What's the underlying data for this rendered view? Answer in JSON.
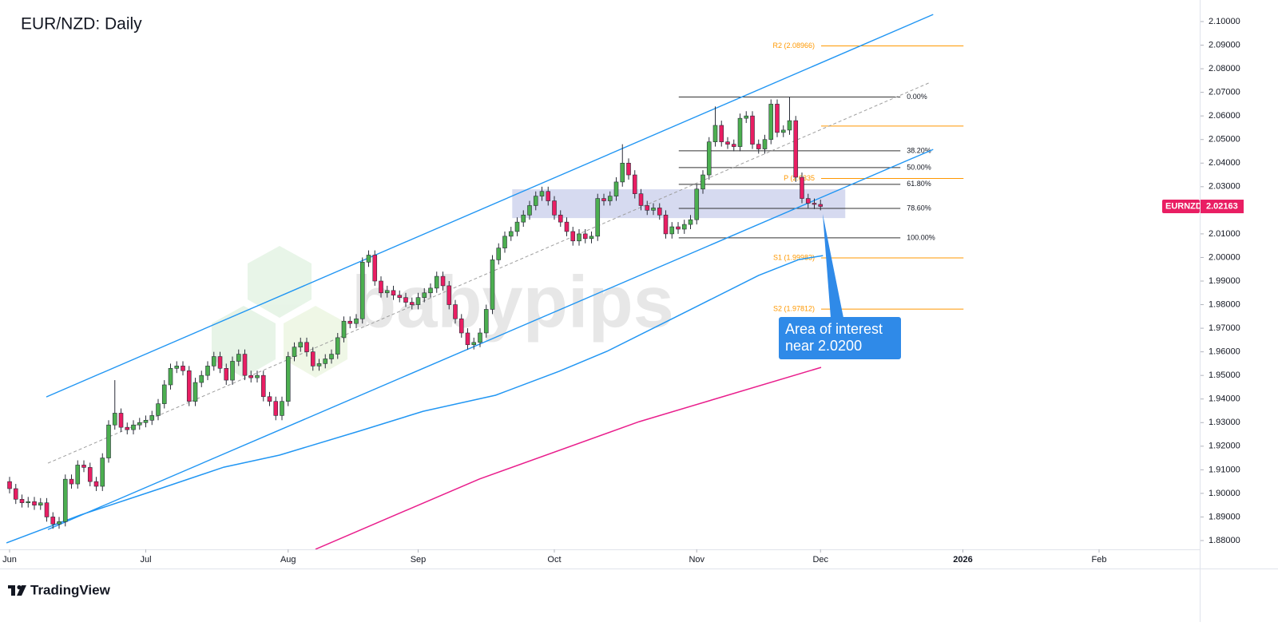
{
  "chart_data": {
    "type": "candlestick",
    "title": "EUR/NZD: Daily",
    "symbol_tag": "EURNZD",
    "last_price": 2.02163,
    "watermark": "babypips",
    "footer": "TradingView",
    "xlim": [
      -1.55,
      192.26
    ],
    "xticks": [
      {
        "value": 0,
        "label": "Jun"
      },
      {
        "value": 22,
        "label": "Jul"
      },
      {
        "value": 45,
        "label": "Aug"
      },
      {
        "value": 66,
        "label": "Sep"
      },
      {
        "value": 88,
        "label": "Oct"
      },
      {
        "value": 111,
        "label": "Nov"
      },
      {
        "value": 131,
        "label": "Dec"
      },
      {
        "value": 154,
        "label": "2026"
      },
      {
        "value": 176,
        "label": "Feb"
      }
    ],
    "ylim": [
      1.87627,
      2.10914
    ],
    "yticks": [
      {
        "value": 1.88,
        "label": "1.88000"
      },
      {
        "value": 1.89,
        "label": "1.89000"
      },
      {
        "value": 1.9,
        "label": "1.90000"
      },
      {
        "value": 1.91,
        "label": "1.91000"
      },
      {
        "value": 1.92,
        "label": "1.92000"
      },
      {
        "value": 1.93,
        "label": "1.93000"
      },
      {
        "value": 1.94,
        "label": "1.94000"
      },
      {
        "value": 1.95,
        "label": "1.95000"
      },
      {
        "value": 1.96,
        "label": "1.96000"
      },
      {
        "value": 1.97,
        "label": "1.97000"
      },
      {
        "value": 1.98,
        "label": "1.98000"
      },
      {
        "value": 1.99,
        "label": "1.99000"
      },
      {
        "value": 2.0,
        "label": "2.00000"
      },
      {
        "value": 2.01,
        "label": "2.01000"
      },
      {
        "value": 2.02,
        "label": "2.02000"
      },
      {
        "value": 2.03,
        "label": "2.03000"
      },
      {
        "value": 2.04,
        "label": "2.04000"
      },
      {
        "value": 2.05,
        "label": "2.05000"
      },
      {
        "value": 2.06,
        "label": "2.06000"
      },
      {
        "value": 2.07,
        "label": "2.07000"
      },
      {
        "value": 2.08,
        "label": "2.08000"
      },
      {
        "value": 2.09,
        "label": "2.09000"
      },
      {
        "value": 2.1,
        "label": "2.10000"
      }
    ],
    "series": [
      {
        "up_color": "#4caf50",
        "down_color": "#e91e63",
        "open": [
          1.905,
          1.902,
          1.8975,
          1.896,
          1.8965,
          1.895,
          1.896,
          1.89,
          1.887,
          1.888,
          1.906,
          1.904,
          1.912,
          1.911,
          1.905,
          1.903,
          1.915,
          1.929,
          1.934,
          1.928,
          1.927,
          1.929,
          1.93,
          1.931,
          1.933,
          1.938,
          1.946,
          1.953,
          1.954,
          1.952,
          1.939,
          1.947,
          1.95,
          1.954,
          1.958,
          1.953,
          1.948,
          1.956,
          1.959,
          1.95,
          1.949,
          1.95,
          1.941,
          1.939,
          1.933,
          1.939,
          1.958,
          1.962,
          1.964,
          1.96,
          1.954,
          1.955,
          1.957,
          1.959,
          1.966,
          1.973,
          1.972,
          1.974,
          1.998,
          2.001,
          1.99,
          1.985,
          1.986,
          1.984,
          1.983,
          1.981,
          1.98,
          1.983,
          1.985,
          1.987,
          1.992,
          1.988,
          1.98,
          1.974,
          1.968,
          1.963,
          1.964,
          1.968,
          1.978,
          1.999,
          2.004,
          2.009,
          2.011,
          2.015,
          2.018,
          2.022,
          2.026,
          2.028,
          2.024,
          2.018,
          2.015,
          2.011,
          2.007,
          2.01,
          2.008,
          2.009,
          2.025,
          2.024,
          2.026,
          2.032,
          2.04,
          2.035,
          2.027,
          2.022,
          2.02,
          2.021,
          2.018,
          2.01,
          2.013,
          2.012,
          2.014,
          2.016,
          2.029,
          2.035,
          2.049,
          2.056,
          2.049,
          2.048,
          2.047,
          2.059,
          2.06,
          2.048,
          2.046,
          2.05,
          2.065,
          2.053,
          2.054,
          2.058,
          2.034,
          2.025,
          2.023,
          2.0225
        ],
        "high": [
          1.907,
          1.904,
          1.8995,
          1.8985,
          1.8985,
          1.898,
          1.898,
          1.892,
          1.89,
          1.908,
          1.908,
          1.914,
          1.914,
          1.913,
          1.907,
          1.917,
          1.931,
          1.948,
          1.936,
          1.93,
          1.931,
          1.932,
          1.933,
          1.935,
          1.94,
          1.948,
          1.955,
          1.956,
          1.956,
          1.954,
          1.949,
          1.952,
          1.956,
          1.96,
          1.96,
          1.955,
          1.958,
          1.961,
          1.961,
          1.952,
          1.952,
          1.952,
          1.943,
          1.941,
          1.941,
          1.96,
          1.964,
          1.966,
          1.966,
          1.962,
          1.957,
          1.959,
          1.961,
          1.968,
          1.975,
          1.975,
          1.976,
          2.0,
          2.003,
          2.003,
          1.992,
          1.988,
          1.988,
          1.986,
          1.985,
          1.983,
          1.985,
          1.987,
          1.989,
          1.994,
          1.994,
          1.99,
          1.982,
          1.976,
          1.97,
          1.966,
          1.97,
          1.98,
          2.001,
          2.006,
          2.011,
          2.013,
          2.017,
          2.02,
          2.024,
          2.028,
          2.03,
          2.03,
          2.026,
          2.02,
          2.017,
          2.013,
          2.012,
          2.012,
          2.011,
          2.027,
          2.027,
          2.028,
          2.034,
          2.048,
          2.042,
          2.037,
          2.029,
          2.024,
          2.023,
          2.023,
          2.02,
          2.015,
          2.015,
          2.016,
          2.018,
          2.031,
          2.037,
          2.051,
          2.064,
          2.058,
          2.051,
          2.05,
          2.061,
          2.062,
          2.062,
          2.05,
          2.052,
          2.067,
          2.067,
          2.056,
          2.068,
          2.06,
          2.036,
          2.027,
          2.025,
          2.0245
        ],
        "low": [
          1.9,
          1.8955,
          1.894,
          1.894,
          1.893,
          1.893,
          1.888,
          1.885,
          1.885,
          1.886,
          1.902,
          1.902,
          1.909,
          1.903,
          1.901,
          1.901,
          1.913,
          1.927,
          1.926,
          1.925,
          1.925,
          1.927,
          1.928,
          1.929,
          1.931,
          1.936,
          1.944,
          1.951,
          1.95,
          1.937,
          1.937,
          1.945,
          1.948,
          1.952,
          1.951,
          1.946,
          1.946,
          1.954,
          1.948,
          1.947,
          1.947,
          1.939,
          1.937,
          1.931,
          1.931,
          1.937,
          1.956,
          1.96,
          1.958,
          1.952,
          1.952,
          1.953,
          1.955,
          1.957,
          1.964,
          1.97,
          1.97,
          1.972,
          1.996,
          1.988,
          1.983,
          1.983,
          1.982,
          1.981,
          1.979,
          1.978,
          1.978,
          1.981,
          1.983,
          1.985,
          1.986,
          1.978,
          1.972,
          1.966,
          1.961,
          1.961,
          1.962,
          1.966,
          1.976,
          1.997,
          2.002,
          2.007,
          2.009,
          2.013,
          2.016,
          2.02,
          2.024,
          2.022,
          2.016,
          2.013,
          2.009,
          2.005,
          2.005,
          2.006,
          2.006,
          2.007,
          2.022,
          2.022,
          2.024,
          2.03,
          2.033,
          2.025,
          2.02,
          2.018,
          2.018,
          2.016,
          2.008,
          2.008,
          2.01,
          2.01,
          2.012,
          2.014,
          2.027,
          2.033,
          2.047,
          2.047,
          2.046,
          2.045,
          2.045,
          2.057,
          2.046,
          2.044,
          2.044,
          2.048,
          2.051,
          2.051,
          2.052,
          2.032,
          2.023,
          2.021,
          2.0205,
          2.02
        ],
        "close": [
          1.902,
          1.8975,
          1.896,
          1.8965,
          1.895,
          1.896,
          1.89,
          1.887,
          1.888,
          1.906,
          1.904,
          1.912,
          1.911,
          1.905,
          1.903,
          1.915,
          1.929,
          1.934,
          1.928,
          1.927,
          1.929,
          1.93,
          1.931,
          1.933,
          1.938,
          1.946,
          1.953,
          1.954,
          1.952,
          1.939,
          1.947,
          1.95,
          1.954,
          1.958,
          1.953,
          1.948,
          1.956,
          1.959,
          1.95,
          1.949,
          1.95,
          1.941,
          1.939,
          1.933,
          1.939,
          1.958,
          1.962,
          1.964,
          1.96,
          1.954,
          1.955,
          1.957,
          1.959,
          1.966,
          1.973,
          1.972,
          1.974,
          1.998,
          2.001,
          1.99,
          1.985,
          1.986,
          1.984,
          1.983,
          1.981,
          1.98,
          1.983,
          1.985,
          1.987,
          1.992,
          1.988,
          1.98,
          1.974,
          1.968,
          1.963,
          1.964,
          1.968,
          1.978,
          1.999,
          2.004,
          2.009,
          2.011,
          2.015,
          2.018,
          2.022,
          2.026,
          2.028,
          2.024,
          2.018,
          2.015,
          2.011,
          2.007,
          2.01,
          2.008,
          2.009,
          2.025,
          2.024,
          2.026,
          2.032,
          2.04,
          2.035,
          2.027,
          2.022,
          2.02,
          2.021,
          2.018,
          2.01,
          2.013,
          2.012,
          2.014,
          2.016,
          2.029,
          2.035,
          2.049,
          2.056,
          2.049,
          2.048,
          2.047,
          2.059,
          2.06,
          2.048,
          2.046,
          2.05,
          2.065,
          2.053,
          2.054,
          2.058,
          2.034,
          2.025,
          2.023,
          2.0225,
          2.02163
        ]
      }
    ],
    "moving_averages": [
      {
        "color": "#2196f3",
        "x": [
          -0.5,
          11.4,
          24.3,
          34.6,
          43.6,
          56.5,
          66.8,
          78.5,
          88.8,
          96.5,
          108.1,
          121.0,
          127.5,
          131.4
        ],
        "values": [
          1.879,
          1.8908,
          1.902,
          1.9111,
          1.9162,
          1.9264,
          1.9348,
          1.9416,
          1.9518,
          1.9602,
          1.9754,
          1.9924,
          1.9991,
          2.0008
        ]
      },
      {
        "color": "#e91e8c",
        "x": [
          49.4,
          75.9,
          101.7,
          131.1
        ],
        "values": [
          1.8763,
          1.9061,
          1.9304,
          1.9534
        ]
      }
    ],
    "trendlines": [
      {
        "color": "#2196f3",
        "dashed": false,
        "x": [
          5.94,
          149.2
        ],
        "values": [
          1.9409,
          2.103
        ]
      },
      {
        "color": "#2196f3",
        "dashed": false,
        "x": [
          6.19,
          149.2
        ],
        "values": [
          1.8847,
          2.0458
        ]
      },
      {
        "color": "#9e9e9e",
        "dashed": true,
        "x": [
          6.19,
          148.8
        ],
        "values": [
          1.9128,
          2.0743
        ]
      }
    ],
    "zone": {
      "x": [
        81.2,
        135.0
      ],
      "values": [
        2.0167,
        2.0289
      ]
    },
    "fibonacci": {
      "x": [
        108.1,
        143.9
      ],
      "levels": [
        {
          "label": "0.00%",
          "value": 2.068
        },
        {
          "label": "38.20%",
          "value": 2.0452
        },
        {
          "label": "50.00%",
          "value": 2.0381
        },
        {
          "label": "61.80%",
          "value": 2.031
        },
        {
          "label": "78.60%",
          "value": 2.0208
        },
        {
          "label": "100.00%",
          "value": 2.0083
        }
      ]
    },
    "pivots": {
      "x": [
        131.1,
        154.1
      ],
      "levels": [
        {
          "label": "R2 (2.08966)",
          "value": 2.08966
        },
        {
          "value": 2.0557
        },
        {
          "label": "P (2.0335",
          "value": 2.0335
        },
        {
          "label": "S1 (1.99983)",
          "value": 1.99983
        },
        {
          "label": "S2 (1.97812)",
          "value": 1.97812
        }
      ]
    },
    "annotation": {
      "lines": [
        "Area of interest",
        "near 2.0200"
      ]
    }
  }
}
